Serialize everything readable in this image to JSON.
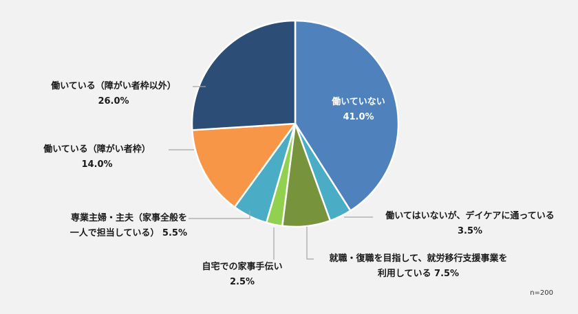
{
  "chart_data": {
    "type": "pie",
    "title": "",
    "note": "n=200",
    "start_angle_deg": 0,
    "direction": "clockwise",
    "slices": [
      {
        "label": "働いていない",
        "value": 41.0,
        "display": "41.0%",
        "color": "#4f81bd",
        "label_position": "inside"
      },
      {
        "label": "働いてはいないが、デイケアに通っている",
        "value": 3.5,
        "display": "3.5%",
        "color": "#4bacc6",
        "label_position": "outside-right"
      },
      {
        "label": "就職・復職を目指して、就労移行支援事業を利用している",
        "value": 7.5,
        "display": "7.5%",
        "color": "#77933c",
        "label_position": "outside-bottom"
      },
      {
        "label": "自宅での家事手伝い",
        "value": 2.5,
        "display": "2.5%",
        "color": "#92d050",
        "label_position": "outside-bottom"
      },
      {
        "label": "専業主婦・主夫（家事全般を一人で担当している）",
        "value": 5.5,
        "display": "5.5%",
        "color": "#4bacc6",
        "label_position": "outside-left"
      },
      {
        "label": "働いている（障がい者枠）",
        "value": 14.0,
        "display": "14.0%",
        "color": "#f79646",
        "label_position": "outside-left"
      },
      {
        "label": "働いている（障がい者枠以外）",
        "value": 26.0,
        "display": "26.0%",
        "color": "#2c4d75",
        "label_position": "outside-left"
      }
    ],
    "legend": "none (data labels with leader lines)"
  },
  "labels": {
    "s0": {
      "line1": "働いていない",
      "line2": "41.0%"
    },
    "s1": {
      "line1": "働いてはいないが、デイケアに通っている",
      "line2": "3.5%"
    },
    "s2": {
      "line1": "就職・復職を目指して、就労移行支援事業を",
      "line2": "利用している 7.5%"
    },
    "s3": {
      "line1": "自宅での家事手伝い",
      "line2": "2.5%"
    },
    "s4": {
      "line1": "専業主婦・主夫（家事全般を",
      "line2": "一人で担当している） 5.5%"
    },
    "s5": {
      "line1": "働いている（障がい者枠）",
      "line2": "14.0%"
    },
    "s6": {
      "line1": "働いている（障がい者枠以外）",
      "line2": "26.0%"
    }
  },
  "footer": {
    "n_note": "n=200"
  }
}
